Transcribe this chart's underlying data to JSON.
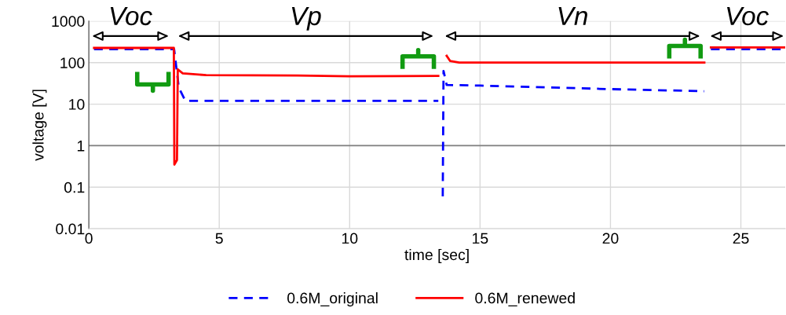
{
  "chart_data": {
    "type": "line",
    "xlabel": "time [sec]",
    "ylabel": "voltage [V]",
    "log": "y",
    "xlim": [
      0,
      26.7
    ],
    "xticks": [
      0,
      5,
      10,
      15,
      20,
      25
    ],
    "ylim": [
      0.01,
      1000
    ],
    "yticks": [
      0.01,
      0.1,
      1,
      10,
      100,
      1000
    ],
    "grid": true,
    "legend": "bottom",
    "ref_lines": [
      {
        "axis": "y",
        "value": 1,
        "color": "#808080"
      }
    ],
    "annotations": [
      "Voc",
      "Vp",
      "Vn",
      "Voc"
    ],
    "series": [
      {
        "name": "0.6M_original",
        "color": "#0000ff",
        "line_style": "dashed",
        "x": [
          0.2,
          3.27,
          3.45,
          3.7,
          6,
          8,
          10,
          12,
          13.4,
          13.5,
          13.57,
          13.6,
          13.72,
          15,
          20,
          23.6,
          23.7,
          23.85,
          26.7
        ],
        "values": [
          210,
          210,
          25,
          12,
          12,
          12,
          12,
          12,
          12,
          null,
          0.06,
          63,
          29,
          28,
          23,
          20.5,
          null,
          210,
          210
        ]
      },
      {
        "name": "0.6M_renewed",
        "color": "#ff0000",
        "line_style": "solid",
        "x": [
          0.2,
          3.26,
          3.28,
          3.38,
          3.41,
          3.6,
          4.5,
          8,
          10,
          13.4,
          13.5,
          13.72,
          13.85,
          14.2,
          23.6,
          23.7,
          23.85,
          26.7
        ],
        "values": [
          226,
          226,
          0.35,
          0.45,
          69,
          55,
          50,
          49,
          47,
          48,
          null,
          146,
          110,
          100,
          100,
          null,
          232,
          232
        ]
      }
    ]
  }
}
